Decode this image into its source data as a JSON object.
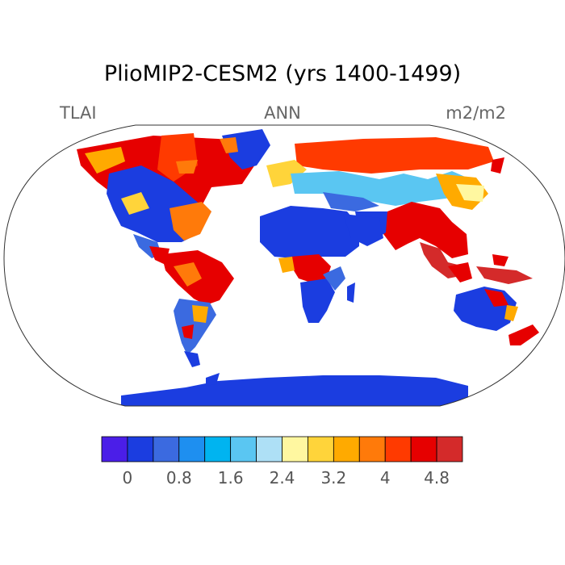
{
  "title": "PlioMIP2-CESM2 (yrs 1400-1499)",
  "labels": {
    "left": "TLAI",
    "center": "ANN",
    "right": "m2/m2"
  },
  "colorbar": {
    "colors": [
      "#4b1ee8",
      "#1b3de0",
      "#3b6ae0",
      "#1e8ff0",
      "#00b4f0",
      "#5ac6f2",
      "#aee0f6",
      "#fff7a0",
      "#ffd43a",
      "#ffaa00",
      "#ff7a0a",
      "#ff3a00",
      "#e60000",
      "#d42a2a"
    ],
    "ticks": [
      "0",
      "0.8",
      "1.6",
      "2.4",
      "3.2",
      "4",
      "4.8"
    ]
  },
  "palette": {
    "low": "#1b3de0",
    "mid": "#3b6ae0",
    "cyan": "#5ac6f2",
    "yellow": "#ffd43a",
    "orange": "#ff7a0a",
    "red": "#e60000",
    "dark_red": "#d42a2a"
  }
}
